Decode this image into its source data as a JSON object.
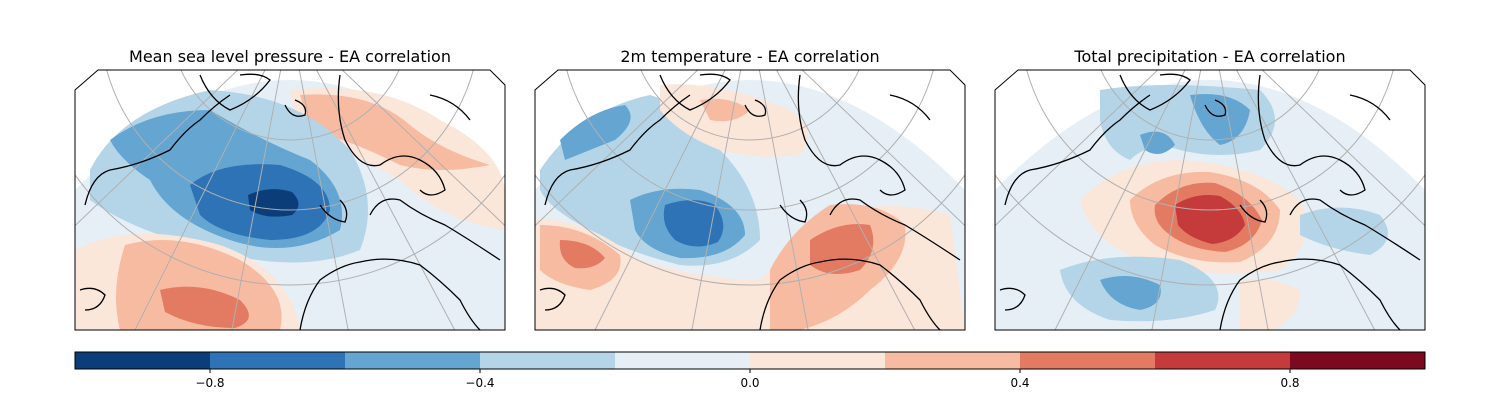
{
  "panels": [
    {
      "title": "Mean sea level pressure - EA correlation"
    },
    {
      "title": "2m temperature - EA correlation"
    },
    {
      "title": "Total precipitation - EA correlation"
    }
  ],
  "colorbar": {
    "range": [
      -1.0,
      1.0
    ],
    "levels": [
      -1.0,
      -0.8,
      -0.6,
      -0.4,
      -0.2,
      0.0,
      0.2,
      0.4,
      0.6,
      0.8,
      1.0
    ],
    "colors": [
      "#0b3e78",
      "#2e73b6",
      "#64a6d1",
      "#b4d5e8",
      "#e6eff6",
      "#fbe6da",
      "#f7bba1",
      "#e37b62",
      "#c53b3b",
      "#7b0a20"
    ],
    "ticks": [
      {
        "value": -0.8,
        "label": "−0.8"
      },
      {
        "value": -0.4,
        "label": "−0.4"
      },
      {
        "value": 0.0,
        "label": "0.0"
      },
      {
        "value": 0.4,
        "label": "0.4"
      },
      {
        "value": 0.8,
        "label": "0.8"
      }
    ]
  }
}
